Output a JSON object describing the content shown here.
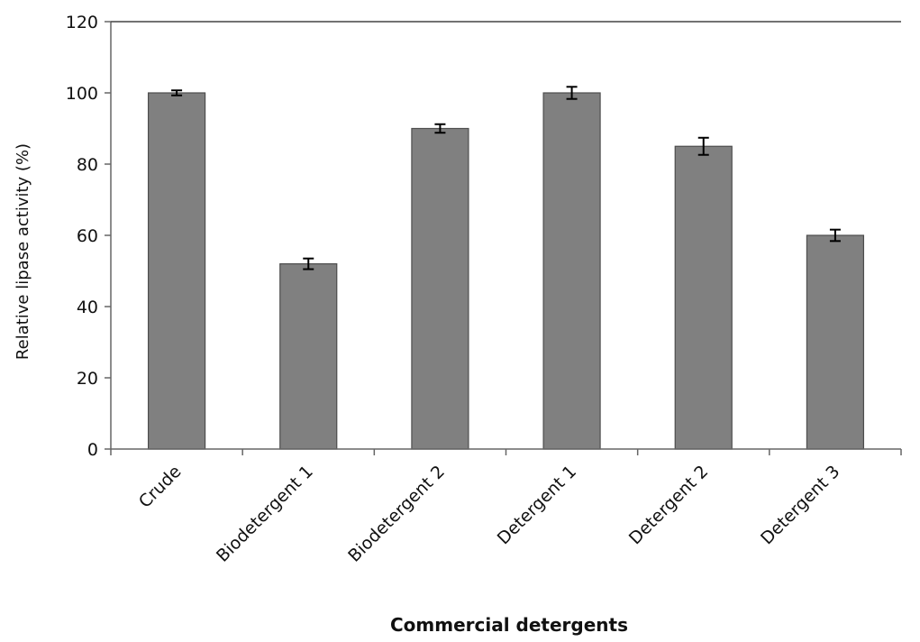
{
  "chart_data": {
    "type": "bar",
    "title": "",
    "xlabel": "Commercial detergents",
    "ylabel": "Relative lipase activity (%)",
    "ylim": [
      0,
      120
    ],
    "yticks": [
      0,
      20,
      40,
      60,
      80,
      100,
      120
    ],
    "grid": false,
    "legend": "none",
    "categories": [
      "Crude",
      "Biodetergent 1",
      "Biodetergent 2",
      "Detergent 1",
      "Detergent 2",
      "Detergent 3"
    ],
    "values": [
      100,
      52,
      90,
      100,
      85,
      60
    ],
    "errors": [
      0.7,
      1.5,
      1.2,
      1.7,
      2.4,
      1.6
    ],
    "bar_color": "#808080",
    "bar_edge_color": "#4d4d4d"
  }
}
